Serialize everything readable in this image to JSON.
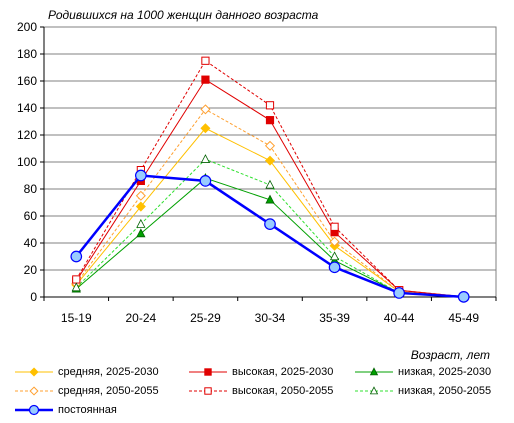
{
  "chart_data": {
    "type": "line",
    "title": "Родившихся на 1000 женщин данного возраста",
    "xlabel": "Возраст, лет",
    "ylabel": "",
    "categories": [
      "15-19",
      "20-24",
      "25-29",
      "30-34",
      "35-39",
      "40-44",
      "45-49"
    ],
    "ylim": [
      0,
      200
    ],
    "yticks": [
      0,
      20,
      40,
      60,
      80,
      100,
      120,
      140,
      160,
      180,
      200
    ],
    "grid": true,
    "legend_position": "bottom",
    "series": [
      {
        "name": "средняя, 2025-2030",
        "values": [
          9,
          67,
          125,
          101,
          38,
          4,
          0.2
        ],
        "color": "#ffc000",
        "marker": "diamond",
        "dashed": false,
        "filled": true,
        "width": 1
      },
      {
        "name": "высокая, 2025-2030",
        "values": [
          12,
          86,
          161,
          131,
          48,
          5,
          0.2
        ],
        "color": "#e00000",
        "marker": "square",
        "dashed": false,
        "filled": true,
        "width": 1
      },
      {
        "name": "низкая, 2025-2030",
        "values": [
          6,
          47,
          88,
          72,
          27,
          3,
          0.2
        ],
        "color": "#00a000",
        "marker": "triangle",
        "dashed": false,
        "filled": true,
        "width": 1
      },
      {
        "name": "средняя, 2050-2055",
        "values": [
          10,
          75,
          139,
          112,
          41,
          4,
          0.2
        ],
        "color": "#ffa030",
        "marker": "diamond",
        "dashed": true,
        "filled": false,
        "width": 1
      },
      {
        "name": "высокая, 2050-2055",
        "values": [
          13,
          94,
          175,
          142,
          52,
          5,
          0.2
        ],
        "color": "#e00000",
        "marker": "square",
        "dashed": true,
        "filled": false,
        "width": 1
      },
      {
        "name": "низкая, 2050-2055",
        "values": [
          7,
          54,
          102,
          83,
          30,
          3,
          0.2
        ],
        "color": "#30e030",
        "marker": "triangle",
        "dashed": true,
        "filled": false,
        "width": 1
      },
      {
        "name": "постоянная",
        "values": [
          30,
          90,
          86,
          54,
          22,
          3,
          0.1
        ],
        "color": "#0000ff",
        "marker": "circle",
        "dashed": false,
        "filled": true,
        "width": 2.5
      }
    ]
  }
}
